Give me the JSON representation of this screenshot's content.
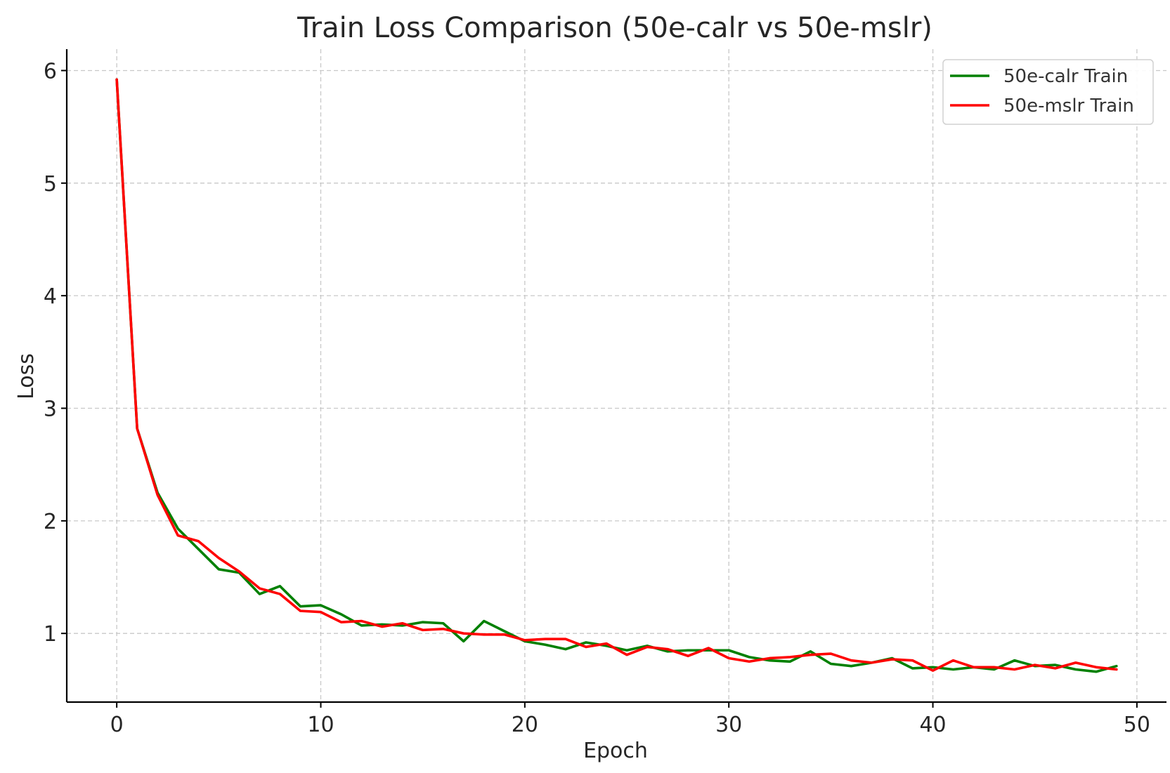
{
  "chart_data": {
    "type": "line",
    "title": "Train Loss Comparison (50e-calr vs 50e-mslr)",
    "xlabel": "Epoch",
    "ylabel": "Loss",
    "xlim": [
      -2.45,
      51.45
    ],
    "ylim": [
      0.39,
      6.19
    ],
    "xticks": [
      0,
      10,
      20,
      30,
      40,
      50
    ],
    "yticks": [
      1,
      2,
      3,
      4,
      5,
      6
    ],
    "grid": true,
    "legend_position": "upper right",
    "x": [
      0,
      1,
      2,
      3,
      4,
      5,
      6,
      7,
      8,
      9,
      10,
      11,
      12,
      13,
      14,
      15,
      16,
      17,
      18,
      19,
      20,
      21,
      22,
      23,
      24,
      25,
      26,
      27,
      28,
      29,
      30,
      31,
      32,
      33,
      34,
      35,
      36,
      37,
      38,
      39,
      40,
      41,
      42,
      43,
      44,
      45,
      46,
      47,
      48,
      49
    ],
    "series": [
      {
        "name": "50e-calr Train",
        "color": "#008000",
        "values": [
          5.92,
          2.82,
          2.25,
          1.93,
          1.75,
          1.57,
          1.54,
          1.35,
          1.42,
          1.24,
          1.25,
          1.17,
          1.07,
          1.08,
          1.07,
          1.1,
          1.09,
          0.93,
          1.11,
          1.02,
          0.93,
          0.9,
          0.86,
          0.92,
          0.89,
          0.85,
          0.89,
          0.84,
          0.85,
          0.85,
          0.85,
          0.79,
          0.76,
          0.75,
          0.84,
          0.73,
          0.71,
          0.74,
          0.78,
          0.69,
          0.7,
          0.68,
          0.7,
          0.68,
          0.76,
          0.71,
          0.72,
          0.68,
          0.66,
          0.71
        ]
      },
      {
        "name": "50e-mslr Train",
        "color": "#ff0000",
        "values": [
          5.92,
          2.82,
          2.23,
          1.87,
          1.82,
          1.67,
          1.55,
          1.4,
          1.35,
          1.2,
          1.19,
          1.1,
          1.11,
          1.06,
          1.09,
          1.03,
          1.04,
          1.0,
          0.99,
          0.99,
          0.94,
          0.95,
          0.95,
          0.88,
          0.91,
          0.81,
          0.88,
          0.86,
          0.8,
          0.87,
          0.78,
          0.75,
          0.78,
          0.79,
          0.81,
          0.82,
          0.76,
          0.74,
          0.77,
          0.76,
          0.67,
          0.76,
          0.7,
          0.7,
          0.68,
          0.72,
          0.69,
          0.74,
          0.7,
          0.68
        ]
      }
    ]
  }
}
